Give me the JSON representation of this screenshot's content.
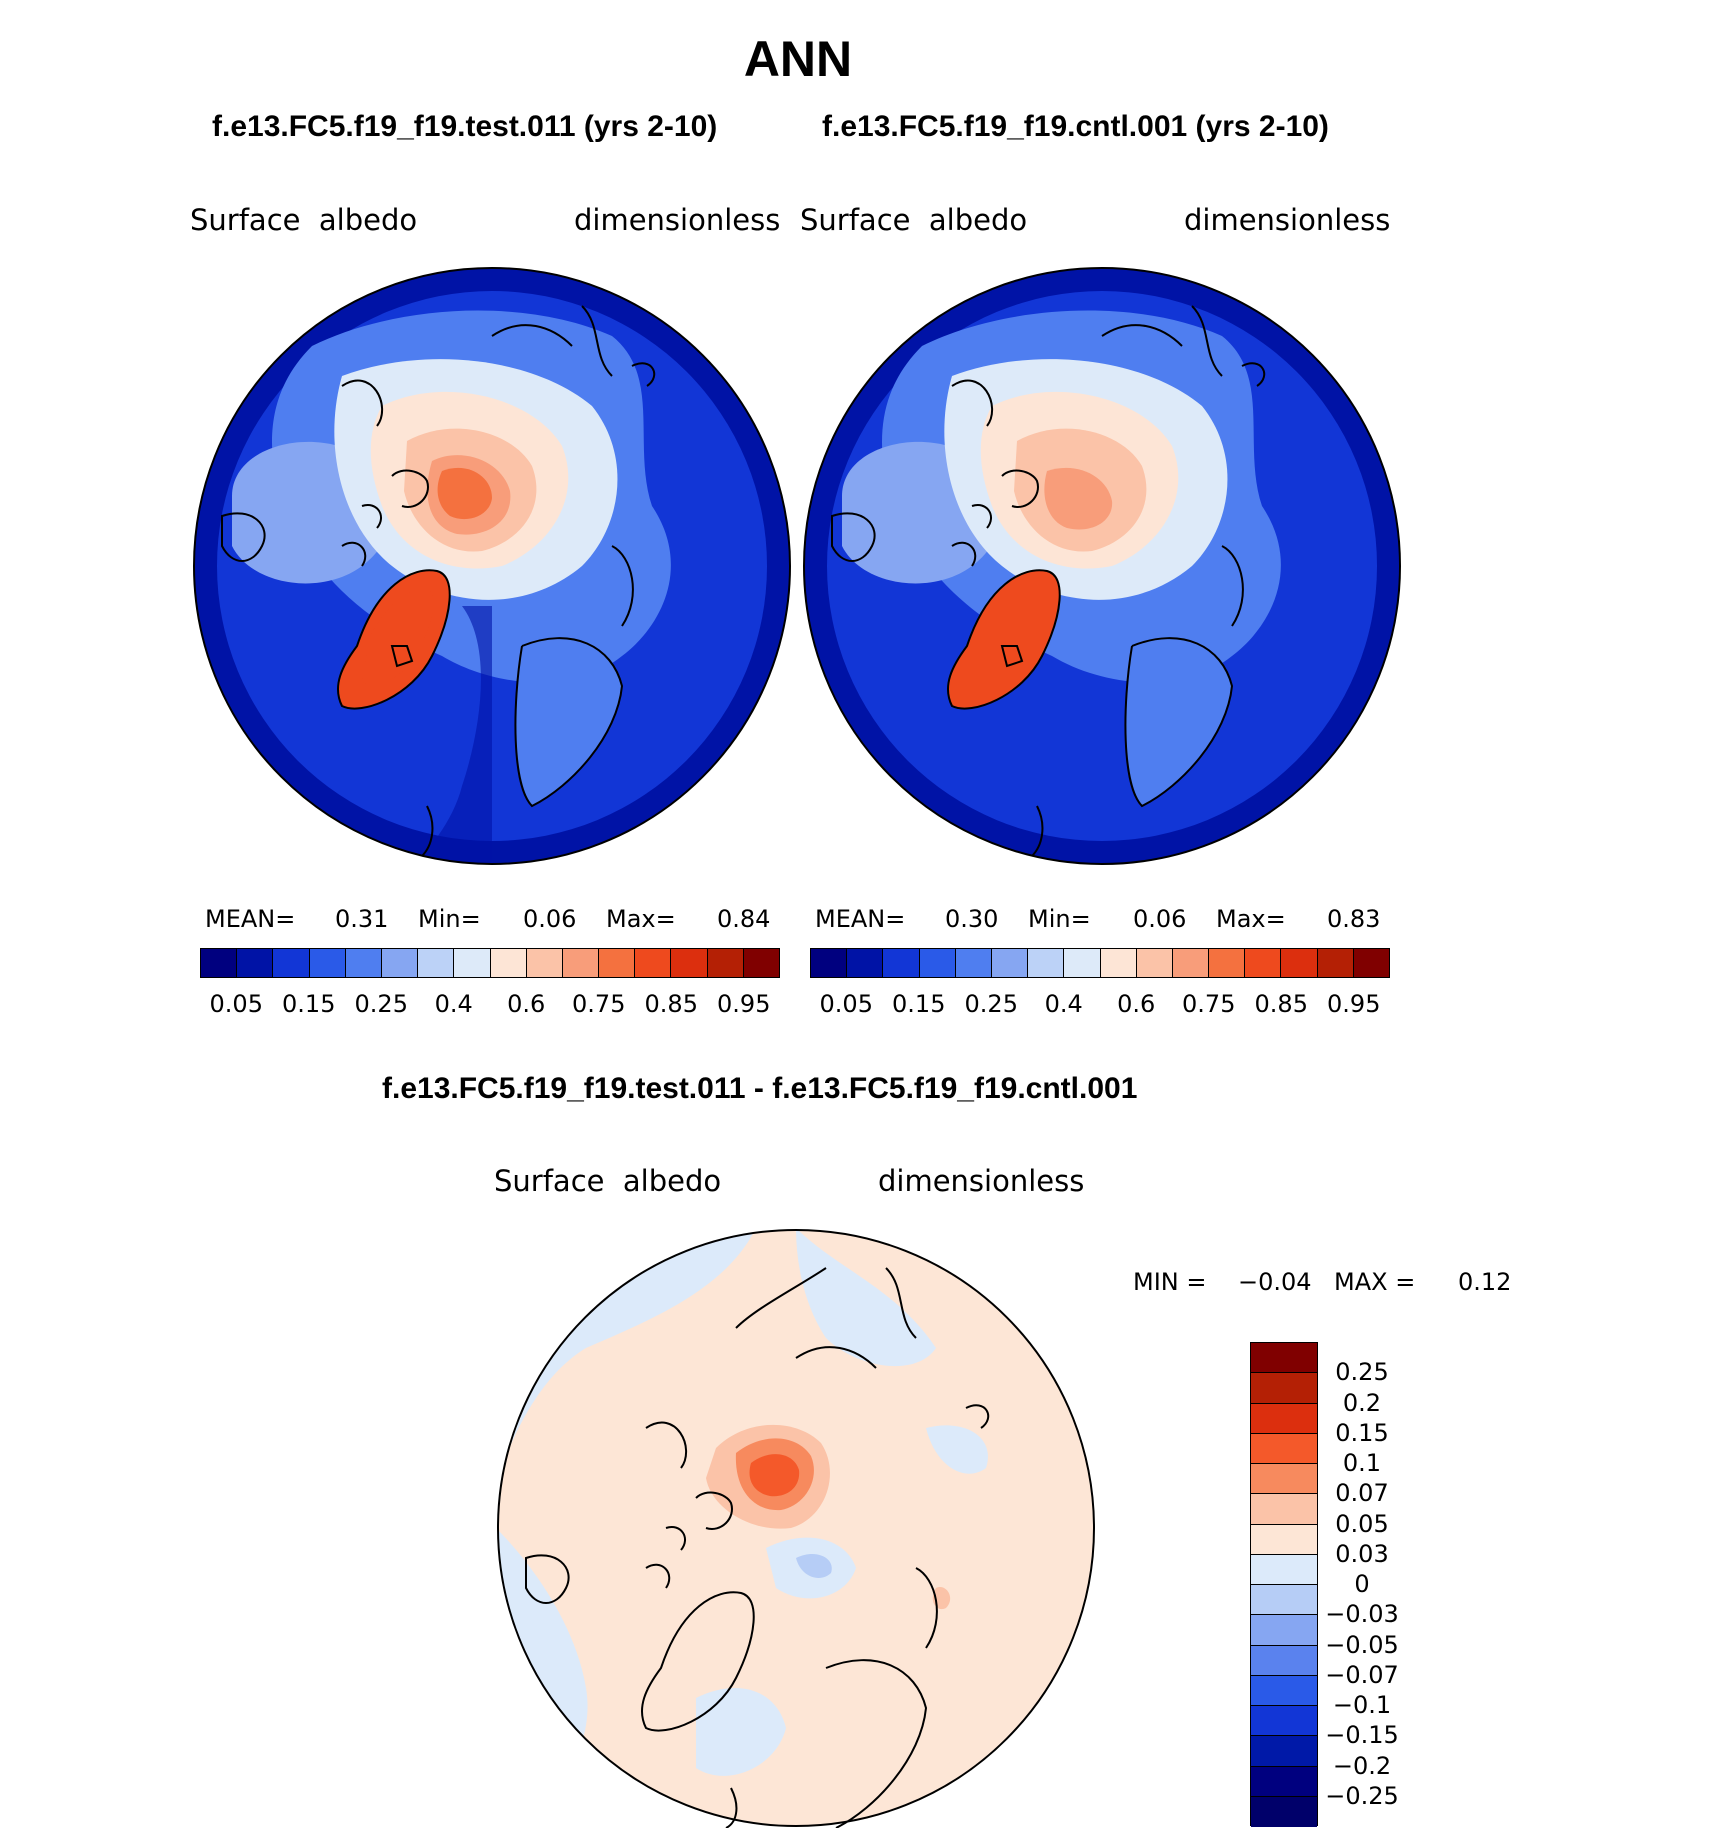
{
  "page": {
    "title": "ANN",
    "diff_title": "f.e13.FC5.f19_f19.test.011 - f.e13.FC5.f19_f19.cntl.001"
  },
  "panels": [
    {
      "case_title": "f.e13.FC5.f19_f19.test.011 (yrs 2-10)",
      "var_name": "Surface  albedo",
      "units": "dimensionless",
      "stats": {
        "mean_label": "MEAN=",
        "mean": "0.31",
        "min_label": "Min=",
        "min": "0.06",
        "max_label": "Max=",
        "max": "0.84"
      },
      "colorbar_labels": [
        "0.05",
        "0.15",
        "0.25",
        "0.4",
        "0.6",
        "0.75",
        "0.85",
        "0.95"
      ]
    },
    {
      "case_title": "f.e13.FC5.f19_f19.cntl.001 (yrs 2-10)",
      "var_name": "Surface  albedo",
      "units": "dimensionless",
      "stats": {
        "mean_label": "MEAN=",
        "mean": "0.30",
        "min_label": "Min=",
        "min": "0.06",
        "max_label": "Max=",
        "max": "0.83"
      },
      "colorbar_labels": [
        "0.05",
        "0.15",
        "0.25",
        "0.4",
        "0.6",
        "0.75",
        "0.85",
        "0.95"
      ]
    }
  ],
  "diff_panel": {
    "var_name": "Surface  albedo",
    "units": "dimensionless",
    "min_label": "MIN =",
    "min": "−0.04",
    "max_label": "MAX =",
    "max": "0.12",
    "colorbar_labels": [
      "0.25",
      "0.2",
      "0.15",
      "0.1",
      "0.07",
      "0.05",
      "0.03",
      "0",
      "−0.03",
      "−0.05",
      "−0.07",
      "−0.1",
      "−0.15",
      "−0.2",
      "−0.25"
    ]
  },
  "colors": {
    "abs_scale": [
      "#00007f",
      "#0013a6",
      "#1236d6",
      "#2a5ae8",
      "#4f7ef0",
      "#86a6f2",
      "#bcd2f7",
      "#ddeaf9",
      "#fde5d6",
      "#fbc3a8",
      "#f89d7a",
      "#f4713f",
      "#ee4a1e",
      "#dc2f0e",
      "#b42005",
      "#800000"
    ],
    "diff_scale": [
      "#800000",
      "#b42005",
      "#dc2f0e",
      "#f4592a",
      "#f78a5e",
      "#fbc3a8",
      "#fde6d6",
      "#dceafa",
      "#b6cdf6",
      "#86a6f2",
      "#5a82ee",
      "#2a5ae8",
      "#1236d6",
      "#0019a8",
      "#00007f"
    ],
    "ocean_abs": "#1236d6",
    "ocean_diff": "#fde6d6"
  }
}
